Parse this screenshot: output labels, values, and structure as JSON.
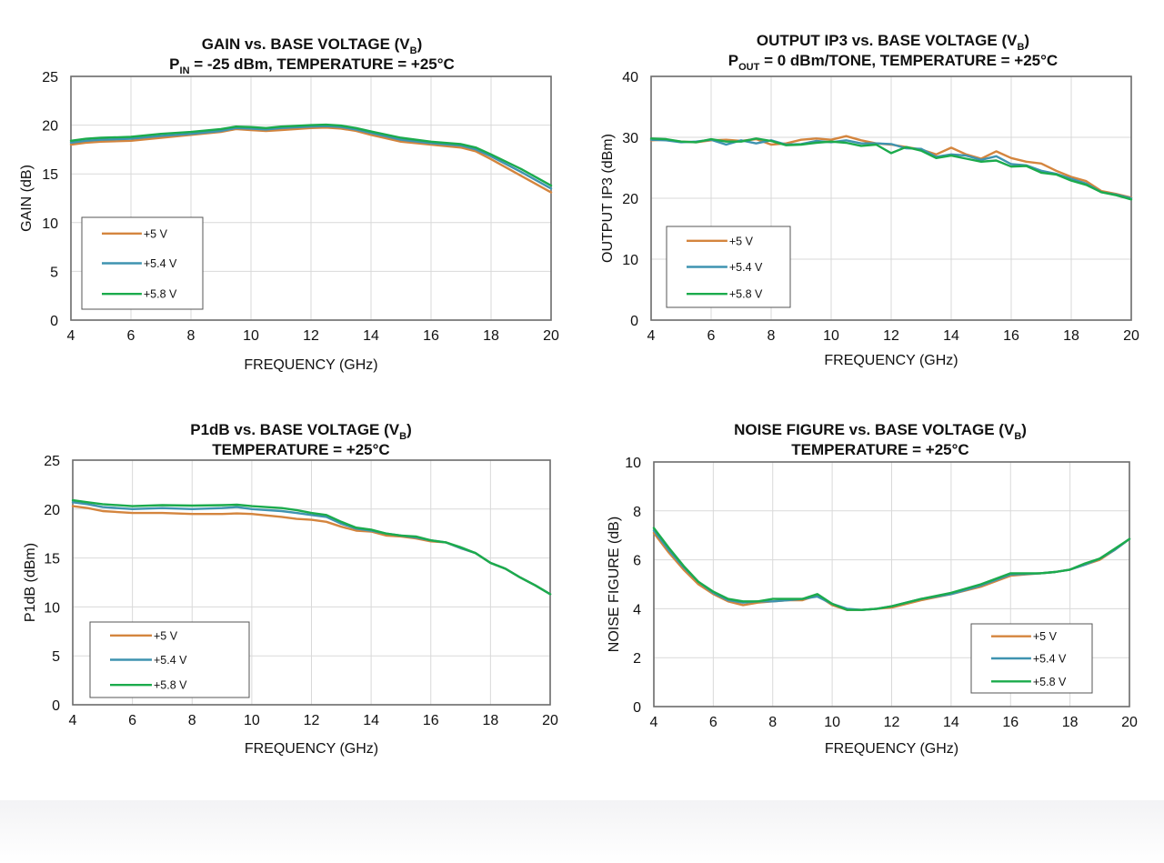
{
  "figure": {
    "colors": {
      "v5": "#d4853e",
      "v54": "#3f93b0",
      "v58": "#1bab4c",
      "grid": "#d9d9d9",
      "frame": "#6b6b6b"
    },
    "legend": [
      "+5 V",
      "+5.4 V",
      "+5.8 V"
    ]
  },
  "chart_data": [
    {
      "type": "line",
      "title": {
        "pre": "GAIN vs. BASE VOLTAGE (V",
        "sub": "B",
        "post": ")"
      },
      "subtitle": {
        "pre": "P",
        "sub": "IN",
        "post": " = -25 dBm, TEMPERATURE = +25°C"
      },
      "xlabel": "FREQUENCY (GHz)",
      "ylabel": "GAIN (dB)",
      "xlim": [
        4,
        20
      ],
      "ylim": [
        0,
        25
      ],
      "xticks": [
        4,
        6,
        8,
        10,
        12,
        14,
        16,
        18,
        20
      ],
      "yticks": [
        0,
        5,
        10,
        15,
        20,
        25
      ],
      "grid": true,
      "legend_position": "lower-left",
      "x": [
        4,
        4.5,
        5,
        6,
        7,
        8,
        9,
        9.5,
        10,
        10.5,
        11,
        12,
        12.5,
        13,
        13.5,
        14,
        15,
        16,
        17,
        17.5,
        18,
        19,
        20
      ],
      "series": [
        {
          "name": "+5 V",
          "values": [
            18.0,
            18.2,
            18.3,
            18.4,
            18.7,
            19.0,
            19.3,
            19.6,
            19.5,
            19.4,
            19.5,
            19.7,
            19.75,
            19.65,
            19.4,
            19.0,
            18.3,
            18.0,
            17.7,
            17.3,
            16.5,
            14.8,
            13.1
          ]
        },
        {
          "name": "+5.4 V",
          "values": [
            18.2,
            18.4,
            18.5,
            18.6,
            18.9,
            19.1,
            19.4,
            19.7,
            19.65,
            19.55,
            19.7,
            19.85,
            19.9,
            19.8,
            19.55,
            19.2,
            18.5,
            18.15,
            17.9,
            17.5,
            16.8,
            15.2,
            13.5
          ]
        },
        {
          "name": "+5.8 V",
          "values": [
            18.4,
            18.6,
            18.7,
            18.8,
            19.1,
            19.3,
            19.6,
            19.85,
            19.8,
            19.7,
            19.85,
            20.0,
            20.05,
            19.95,
            19.7,
            19.35,
            18.7,
            18.3,
            18.05,
            17.7,
            17.0,
            15.5,
            13.8
          ]
        }
      ]
    },
    {
      "type": "line",
      "title": {
        "pre": "OUTPUT IP3 vs. BASE VOLTAGE (V",
        "sub": "B",
        "post": ")"
      },
      "subtitle": {
        "pre": "P",
        "sub": "OUT",
        "post": " = 0 dBm/TONE, TEMPERATURE = +25°C"
      },
      "xlabel": "FREQUENCY (GHz)",
      "ylabel": "OUTPUT IP3  (dBm)",
      "xlim": [
        4,
        20
      ],
      "ylim": [
        0,
        40
      ],
      "xticks": [
        4,
        6,
        8,
        10,
        12,
        14,
        16,
        18,
        20
      ],
      "yticks": [
        0,
        10,
        20,
        30,
        40
      ],
      "grid": true,
      "legend_position": "lower-left",
      "x": [
        4,
        4.5,
        5,
        5.5,
        6,
        6.5,
        7,
        7.5,
        8,
        8.5,
        9,
        9.5,
        10,
        10.5,
        11,
        11.5,
        12,
        12.5,
        13,
        13.5,
        14,
        14.5,
        15,
        15.5,
        16,
        16.5,
        17,
        17.5,
        18,
        18.5,
        19,
        19.5,
        20
      ],
      "series": [
        {
          "name": "+5 V",
          "values": [
            29.5,
            29.6,
            29.3,
            29.2,
            29.5,
            29.6,
            29.4,
            29.7,
            28.8,
            29.0,
            29.6,
            29.8,
            29.6,
            30.2,
            29.5,
            29.0,
            28.8,
            28.4,
            28.0,
            27.2,
            28.3,
            27.2,
            26.5,
            27.7,
            26.6,
            26.0,
            25.7,
            24.5,
            23.5,
            22.8,
            21.2,
            20.7,
            20.1
          ]
        },
        {
          "name": "+5.4 V",
          "values": [
            29.6,
            29.5,
            29.2,
            29.3,
            29.6,
            28.8,
            29.5,
            29.0,
            29.5,
            28.8,
            28.9,
            29.4,
            29.2,
            29.5,
            29.0,
            29.0,
            28.9,
            28.2,
            28.1,
            26.8,
            27.2,
            27.0,
            26.3,
            26.9,
            25.6,
            25.4,
            24.5,
            24.0,
            23.2,
            22.4,
            21.0,
            20.6,
            20.0
          ]
        },
        {
          "name": "+5.8 V",
          "values": [
            29.8,
            29.7,
            29.3,
            29.2,
            29.7,
            29.3,
            29.3,
            29.8,
            29.4,
            28.7,
            28.8,
            29.1,
            29.3,
            29.1,
            28.6,
            28.8,
            27.4,
            28.4,
            27.8,
            26.6,
            27.0,
            26.5,
            26.0,
            26.2,
            25.2,
            25.3,
            24.2,
            23.9,
            22.9,
            22.2,
            21.0,
            20.5,
            19.8
          ]
        }
      ]
    },
    {
      "type": "line",
      "title": {
        "pre": "P1dB vs. BASE VOLTAGE (V",
        "sub": "B",
        "post": ")"
      },
      "subtitle": {
        "pre": "TEMPERATURE = +25°C",
        "sub": "",
        "post": ""
      },
      "xlabel": "FREQUENCY (GHz)",
      "ylabel": "P1dB (dBm)",
      "xlim": [
        4,
        20
      ],
      "ylim": [
        0,
        25
      ],
      "xticks": [
        4,
        6,
        8,
        10,
        12,
        14,
        16,
        18,
        20
      ],
      "yticks": [
        0,
        5,
        10,
        15,
        20,
        25
      ],
      "grid": true,
      "legend_position": "lower-left",
      "x": [
        4,
        4.5,
        5,
        6,
        7,
        8,
        9,
        9.5,
        10,
        11,
        11.5,
        12,
        12.5,
        13,
        13.5,
        14,
        14.5,
        15,
        15.5,
        16,
        16.5,
        17,
        17.5,
        18,
        18.5,
        19,
        19.5,
        20
      ],
      "series": [
        {
          "name": "+5 V",
          "values": [
            20.3,
            20.1,
            19.8,
            19.6,
            19.6,
            19.5,
            19.5,
            19.55,
            19.5,
            19.2,
            19.0,
            18.9,
            18.7,
            18.2,
            17.8,
            17.7,
            17.3,
            17.2,
            17.0,
            16.7,
            16.6,
            16.0,
            15.5,
            14.5,
            13.9,
            13.0,
            12.2,
            11.3
          ]
        },
        {
          "name": "+5.4 V",
          "values": [
            20.7,
            20.5,
            20.2,
            20.0,
            20.1,
            20.0,
            20.1,
            20.2,
            20.0,
            19.8,
            19.6,
            19.4,
            19.2,
            18.5,
            18.0,
            17.8,
            17.5,
            17.3,
            17.1,
            16.8,
            16.6,
            16.0,
            15.5,
            14.5,
            13.9,
            13.0,
            12.2,
            11.3
          ]
        },
        {
          "name": "+5.8 V",
          "values": [
            20.9,
            20.7,
            20.5,
            20.3,
            20.4,
            20.35,
            20.4,
            20.45,
            20.3,
            20.1,
            19.9,
            19.6,
            19.4,
            18.7,
            18.1,
            17.9,
            17.5,
            17.3,
            17.2,
            16.8,
            16.6,
            16.1,
            15.5,
            14.5,
            13.9,
            13.0,
            12.2,
            11.3
          ]
        }
      ]
    },
    {
      "type": "line",
      "title": {
        "pre": "NOISE FIGURE vs. BASE VOLTAGE (V",
        "sub": "B",
        "post": ")"
      },
      "subtitle": {
        "pre": "TEMPERATURE = +25°C",
        "sub": "",
        "post": ""
      },
      "xlabel": "FREQUENCY (GHz)",
      "ylabel": "NOISE FIGURE (dB)",
      "xlim": [
        4,
        20
      ],
      "ylim": [
        0,
        10
      ],
      "xticks": [
        4,
        6,
        8,
        10,
        12,
        14,
        16,
        18,
        20
      ],
      "yticks": [
        0,
        2,
        4,
        6,
        8,
        10
      ],
      "grid": true,
      "legend_position": "lower-right",
      "x": [
        4,
        4.5,
        5,
        5.5,
        6,
        6.5,
        7,
        7.5,
        8,
        8.5,
        9,
        9.5,
        10,
        10.5,
        11,
        11.5,
        12,
        13,
        14,
        15,
        16,
        16.5,
        17,
        17.5,
        18,
        18.5,
        19,
        19.5,
        20
      ],
      "series": [
        {
          "name": "+5 V",
          "values": [
            7.1,
            6.3,
            5.6,
            5.0,
            4.6,
            4.3,
            4.15,
            4.25,
            4.3,
            4.35,
            4.35,
            4.55,
            4.15,
            3.95,
            3.95,
            4.0,
            4.05,
            4.35,
            4.6,
            4.9,
            5.35,
            5.4,
            5.45,
            5.5,
            5.6,
            5.8,
            6.0,
            6.4,
            6.85
          ]
        },
        {
          "name": "+5.4 V",
          "values": [
            7.2,
            6.4,
            5.7,
            5.1,
            4.65,
            4.35,
            4.25,
            4.3,
            4.3,
            4.35,
            4.4,
            4.5,
            4.2,
            4.0,
            3.95,
            4.0,
            4.1,
            4.4,
            4.6,
            4.95,
            5.4,
            5.42,
            5.45,
            5.5,
            5.6,
            5.8,
            6.05,
            6.4,
            6.85
          ]
        },
        {
          "name": "+5.8 V",
          "values": [
            7.3,
            6.5,
            5.75,
            5.1,
            4.7,
            4.4,
            4.3,
            4.3,
            4.4,
            4.4,
            4.4,
            4.6,
            4.2,
            3.95,
            3.95,
            4.0,
            4.1,
            4.4,
            4.65,
            5.0,
            5.45,
            5.45,
            5.45,
            5.5,
            5.6,
            5.85,
            6.05,
            6.45,
            6.85
          ]
        }
      ]
    }
  ]
}
